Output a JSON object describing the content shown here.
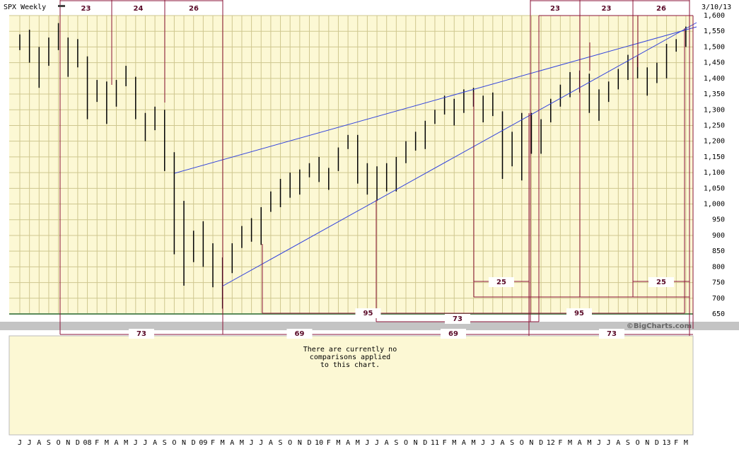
{
  "chart_data": {
    "type": "ohlc",
    "title": "SPX Weekly",
    "date": "3/10/13",
    "watermark": "©BigCharts.com",
    "comparison_note": [
      "There are currently no",
      "comparisons applied",
      "to this chart."
    ],
    "categories": [
      "J",
      "J",
      "A",
      "S",
      "O",
      "N",
      "D",
      "08",
      "F",
      "M",
      "A",
      "M",
      "J",
      "J",
      "A",
      "S",
      "O",
      "N",
      "D",
      "09",
      "F",
      "M",
      "A",
      "M",
      "J",
      "J",
      "A",
      "S",
      "O",
      "N",
      "D",
      "10",
      "F",
      "M",
      "A",
      "M",
      "J",
      "J",
      "A",
      "S",
      "O",
      "N",
      "D",
      "11",
      "F",
      "M",
      "A",
      "M",
      "J",
      "J",
      "A",
      "S",
      "O",
      "N",
      "D",
      "12",
      "F",
      "M",
      "A",
      "M",
      "J",
      "J",
      "A",
      "S",
      "O",
      "N",
      "D",
      "13",
      "F",
      "M"
    ],
    "high": [
      1540,
      1555,
      1500,
      1530,
      1576,
      1530,
      1525,
      1470,
      1395,
      1390,
      1395,
      1440,
      1405,
      1290,
      1310,
      1300,
      1165,
      1010,
      915,
      945,
      875,
      830,
      875,
      930,
      955,
      990,
      1040,
      1080,
      1100,
      1110,
      1130,
      1150,
      1115,
      1180,
      1220,
      1220,
      1130,
      1120,
      1130,
      1150,
      1200,
      1230,
      1265,
      1300,
      1345,
      1335,
      1365,
      1370,
      1345,
      1355,
      1295,
      1230,
      1290,
      1290,
      1270,
      1335,
      1380,
      1420,
      1425,
      1415,
      1365,
      1390,
      1430,
      1475,
      1470,
      1435,
      1450,
      1510,
      1525,
      1565
    ],
    "low": [
      1490,
      1450,
      1370,
      1440,
      1490,
      1405,
      1435,
      1270,
      1325,
      1255,
      1310,
      1375,
      1270,
      1200,
      1235,
      1105,
      840,
      740,
      815,
      800,
      735,
      667,
      780,
      860,
      880,
      870,
      975,
      990,
      1020,
      1030,
      1085,
      1070,
      1045,
      1105,
      1175,
      1065,
      1030,
      1010,
      1040,
      1040,
      1130,
      1170,
      1175,
      1255,
      1285,
      1250,
      1290,
      1310,
      1260,
      1280,
      1080,
      1120,
      1075,
      1160,
      1160,
      1260,
      1310,
      1340,
      1355,
      1290,
      1265,
      1325,
      1365,
      1395,
      1400,
      1345,
      1385,
      1400,
      1485,
      1500
    ],
    "color": "#000000",
    "ylim": [
      650,
      1600
    ],
    "yticks": [
      650,
      700,
      750,
      800,
      850,
      900,
      950,
      {
        "value": 1000,
        "label": "1,000"
      },
      {
        "value": 1050,
        "label": "1,050"
      },
      {
        "value": 1100,
        "label": "1,100"
      },
      {
        "value": 1150,
        "label": "1,150"
      },
      {
        "value": 1200,
        "label": "1,200"
      },
      {
        "value": 1250,
        "label": "1,250"
      },
      {
        "value": 1300,
        "label": "1,300"
      },
      {
        "value": 1350,
        "label": "1,350"
      },
      {
        "value": 1400,
        "label": "1,400"
      },
      {
        "value": 1450,
        "label": "1,450"
      },
      {
        "value": 1500,
        "label": "1,500"
      },
      {
        "value": 1550,
        "label": "1,550"
      },
      {
        "value": 1600,
        "label": "1,600"
      }
    ],
    "grid": true,
    "cycle_labels": [
      "23",
      "24",
      "26",
      "23",
      "23",
      "26",
      "95",
      "73",
      "95",
      "25",
      "25",
      "73",
      "69",
      "69",
      "73"
    ]
  }
}
